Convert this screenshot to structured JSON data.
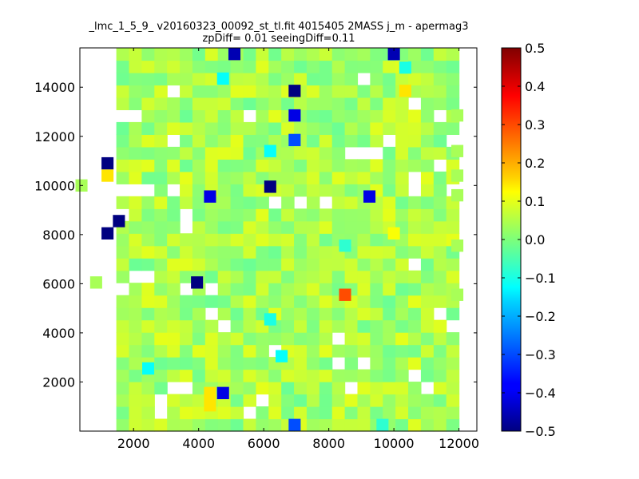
{
  "chart_data": {
    "type": "heatmap",
    "title": "_lmc_1_5_9_ v20160323_00092_st_tl.fit 4015405 2MASS j_m - apermag3",
    "subtitle": "zpDiff= 0.01 seeingDiff=0.11",
    "xlabel": "",
    "ylabel": "",
    "xlim": [
      350,
      12550
    ],
    "ylim": [
      0,
      15600
    ],
    "x_ticks": [
      "2000",
      "4000",
      "6000",
      "8000",
      "10000",
      "12000"
    ],
    "x_tick_values": [
      2000,
      4000,
      6000,
      8000,
      10000,
      12000
    ],
    "y_ticks": [
      "2000",
      "4000",
      "6000",
      "8000",
      "10000",
      "12000",
      "14000"
    ],
    "y_tick_values": [
      2000,
      4000,
      6000,
      8000,
      10000,
      12000,
      14000
    ],
    "colorbar": {
      "colormap": "jet",
      "vmin": -0.5,
      "vmax": 0.5,
      "ticks": [
        "0.5",
        "0.4",
        "0.3",
        "0.2",
        "0.1",
        "0.0",
        "−0.1",
        "−0.2",
        "−0.3",
        "−0.4",
        "−0.5"
      ],
      "tick_values": [
        0.5,
        0.4,
        0.3,
        0.2,
        0.1,
        0.0,
        -0.1,
        -0.2,
        -0.3,
        -0.4,
        -0.5
      ]
    },
    "grid": false,
    "cell_size": [
      370,
      500
    ],
    "x_range": [
      350,
      12550
    ],
    "y_range": [
      0,
      15600
    ],
    "background_value": 0.04,
    "missing_cells": [
      [
        5,
        31
      ],
      [
        8,
        31
      ],
      [
        12,
        31
      ],
      [
        22,
        31
      ],
      [
        30,
        31
      ],
      [
        32,
        31
      ],
      [
        33,
        31
      ],
      [
        23,
        28
      ],
      [
        32,
        28
      ],
      [
        8,
        27
      ],
      [
        27,
        26
      ],
      [
        3,
        25
      ],
      [
        4,
        25
      ],
      [
        5,
        25
      ],
      [
        14,
        25
      ],
      [
        29,
        25
      ],
      [
        32,
        25
      ],
      [
        8,
        23
      ],
      [
        25,
        23
      ],
      [
        30,
        23
      ],
      [
        22,
        22
      ],
      [
        23,
        22
      ],
      [
        24,
        22
      ],
      [
        29,
        21
      ],
      [
        33,
        21
      ],
      [
        35,
        21
      ],
      [
        27,
        20
      ],
      [
        31,
        20
      ],
      [
        1,
        19
      ],
      [
        2,
        19
      ],
      [
        3,
        19
      ],
      [
        4,
        19
      ],
      [
        5,
        19
      ],
      [
        6,
        19
      ],
      [
        8,
        19
      ],
      [
        27,
        19
      ],
      [
        30,
        19
      ],
      [
        33,
        19
      ],
      [
        34,
        19
      ],
      [
        35,
        19
      ],
      [
        16,
        18
      ],
      [
        18,
        18
      ],
      [
        20,
        18
      ],
      [
        34,
        18
      ],
      [
        35,
        18
      ],
      [
        0,
        17
      ],
      [
        4,
        17
      ],
      [
        9,
        17
      ],
      [
        33,
        17
      ],
      [
        34,
        17
      ],
      [
        35,
        17
      ],
      [
        9,
        16
      ],
      [
        0,
        15
      ],
      [
        1,
        15
      ],
      [
        2,
        15
      ],
      [
        33,
        15
      ],
      [
        34,
        15
      ],
      [
        35,
        15
      ],
      [
        32,
        14
      ],
      [
        33,
        14
      ],
      [
        34,
        14
      ],
      [
        35,
        14
      ],
      [
        27,
        13
      ],
      [
        1,
        12
      ],
      [
        2,
        12
      ],
      [
        3,
        12
      ],
      [
        5,
        12
      ],
      [
        6,
        12
      ],
      [
        33,
        12
      ],
      [
        34,
        12
      ],
      [
        35,
        12
      ],
      [
        9,
        11
      ],
      [
        3,
        11
      ],
      [
        4,
        11
      ],
      [
        11,
        11
      ],
      [
        32,
        11
      ],
      [
        33,
        11
      ],
      [
        34,
        11
      ],
      [
        35,
        11
      ],
      [
        33,
        10
      ],
      [
        34,
        10
      ],
      [
        35,
        10
      ],
      [
        2,
        9
      ],
      [
        11,
        9
      ],
      [
        29,
        9
      ],
      [
        32,
        9
      ],
      [
        33,
        9
      ],
      [
        34,
        9
      ],
      [
        35,
        9
      ],
      [
        1,
        8
      ],
      [
        2,
        8
      ],
      [
        3,
        8
      ],
      [
        12,
        8
      ],
      [
        30,
        8
      ],
      [
        33,
        8
      ],
      [
        35,
        8
      ],
      [
        1,
        7
      ],
      [
        2,
        7
      ],
      [
        21,
        7
      ],
      [
        32,
        7
      ],
      [
        33,
        7
      ],
      [
        34,
        7
      ],
      [
        35,
        7
      ],
      [
        16,
        6
      ],
      [
        34,
        6
      ],
      [
        35,
        6
      ],
      [
        1,
        5
      ],
      [
        2,
        5
      ],
      [
        21,
        5
      ],
      [
        23,
        5
      ],
      [
        34,
        5
      ],
      [
        35,
        5
      ],
      [
        0,
        4
      ],
      [
        1,
        4
      ],
      [
        2,
        4
      ],
      [
        27,
        4
      ],
      [
        32,
        4
      ],
      [
        33,
        4
      ],
      [
        34,
        4
      ],
      [
        35,
        4
      ],
      [
        1,
        3
      ],
      [
        2,
        3
      ],
      [
        8,
        3
      ],
      [
        9,
        3
      ],
      [
        22,
        3
      ],
      [
        28,
        3
      ],
      [
        34,
        3
      ],
      [
        35,
        3
      ],
      [
        1,
        2
      ],
      [
        2,
        2
      ],
      [
        7,
        2
      ],
      [
        15,
        2
      ],
      [
        34,
        2
      ],
      [
        35,
        2
      ],
      [
        0,
        1
      ],
      [
        1,
        1
      ],
      [
        2,
        1
      ],
      [
        7,
        1
      ],
      [
        14,
        1
      ],
      [
        34,
        1
      ],
      [
        35,
        1
      ],
      [
        0,
        0
      ],
      [
        1,
        0
      ],
      [
        2,
        0
      ],
      [
        35,
        0
      ],
      [
        0,
        30
      ],
      [
        1,
        30
      ],
      [
        2,
        30
      ],
      [
        34,
        30
      ],
      [
        35,
        30
      ],
      [
        0,
        29
      ],
      [
        1,
        29
      ],
      [
        35,
        29
      ],
      [
        0,
        28
      ],
      [
        1,
        28
      ],
      [
        35,
        28
      ],
      [
        0,
        27
      ],
      [
        1,
        27
      ],
      [
        35,
        27
      ],
      [
        0,
        26
      ],
      [
        1,
        26
      ],
      [
        35,
        26
      ],
      [
        0,
        25
      ],
      [
        1,
        25
      ],
      [
        35,
        25
      ],
      [
        0,
        24
      ],
      [
        1,
        24
      ],
      [
        35,
        24
      ],
      [
        0,
        23
      ],
      [
        1,
        23
      ],
      [
        35,
        23
      ],
      [
        0,
        22
      ],
      [
        1,
        22
      ],
      [
        35,
        22
      ],
      [
        0,
        21
      ],
      [
        1,
        21
      ],
      [
        0,
        20
      ],
      [
        1,
        20
      ],
      [
        35,
        20
      ],
      [
        0,
        18
      ],
      [
        1,
        18
      ],
      [
        0,
        16
      ],
      [
        1,
        16
      ],
      [
        0,
        14
      ],
      [
        1,
        14
      ],
      [
        0,
        13
      ],
      [
        1,
        13
      ],
      [
        35,
        13
      ],
      [
        0,
        11
      ],
      [
        1,
        11
      ],
      [
        0,
        10
      ],
      [
        1,
        10
      ],
      [
        0,
        9
      ],
      [
        1,
        9
      ],
      [
        0,
        8
      ],
      [
        0,
        7
      ],
      [
        0,
        6
      ],
      [
        1,
        6
      ],
      [
        0,
        5
      ],
      [
        0,
        3
      ],
      [
        0,
        2
      ],
      [
        0,
        0
      ]
    ],
    "highlight_cells": [
      {
        "x": 5100,
        "y": 15350,
        "value": -0.45
      },
      {
        "x": 10000,
        "y": 15350,
        "value": -0.45
      },
      {
        "x": 10350,
        "y": 14800,
        "value": -0.1
      },
      {
        "x": 4750,
        "y": 14350,
        "value": -0.12
      },
      {
        "x": 6950,
        "y": 13850,
        "value": -0.5
      },
      {
        "x": 10350,
        "y": 13850,
        "value": 0.15
      },
      {
        "x": 6950,
        "y": 12850,
        "value": -0.4
      },
      {
        "x": 6950,
        "y": 11850,
        "value": -0.3
      },
      {
        "x": 6200,
        "y": 11400,
        "value": -0.12
      },
      {
        "x": 1200,
        "y": 10900,
        "value": -0.5
      },
      {
        "x": 1200,
        "y": 10400,
        "value": 0.15
      },
      {
        "x": 6200,
        "y": 9950,
        "value": -0.5
      },
      {
        "x": 4350,
        "y": 9550,
        "value": -0.4
      },
      {
        "x": 9250,
        "y": 9550,
        "value": -0.4
      },
      {
        "x": 1550,
        "y": 8550,
        "value": -0.5
      },
      {
        "x": 1200,
        "y": 8050,
        "value": -0.5
      },
      {
        "x": 10000,
        "y": 8050,
        "value": 0.12
      },
      {
        "x": 8500,
        "y": 7550,
        "value": -0.08
      },
      {
        "x": 3950,
        "y": 6050,
        "value": -0.5
      },
      {
        "x": 8500,
        "y": 5550,
        "value": 0.3
      },
      {
        "x": 6200,
        "y": 4550,
        "value": -0.1
      },
      {
        "x": 6550,
        "y": 3050,
        "value": -0.12
      },
      {
        "x": 2450,
        "y": 2550,
        "value": -0.12
      },
      {
        "x": 4750,
        "y": 1550,
        "value": -0.4
      },
      {
        "x": 4350,
        "y": 1050,
        "value": 0.15
      },
      {
        "x": 4350,
        "y": 1550,
        "value": 0.15
      },
      {
        "x": 6950,
        "y": 250,
        "value": -0.3
      },
      {
        "x": 9650,
        "y": 250,
        "value": -0.08
      }
    ]
  }
}
